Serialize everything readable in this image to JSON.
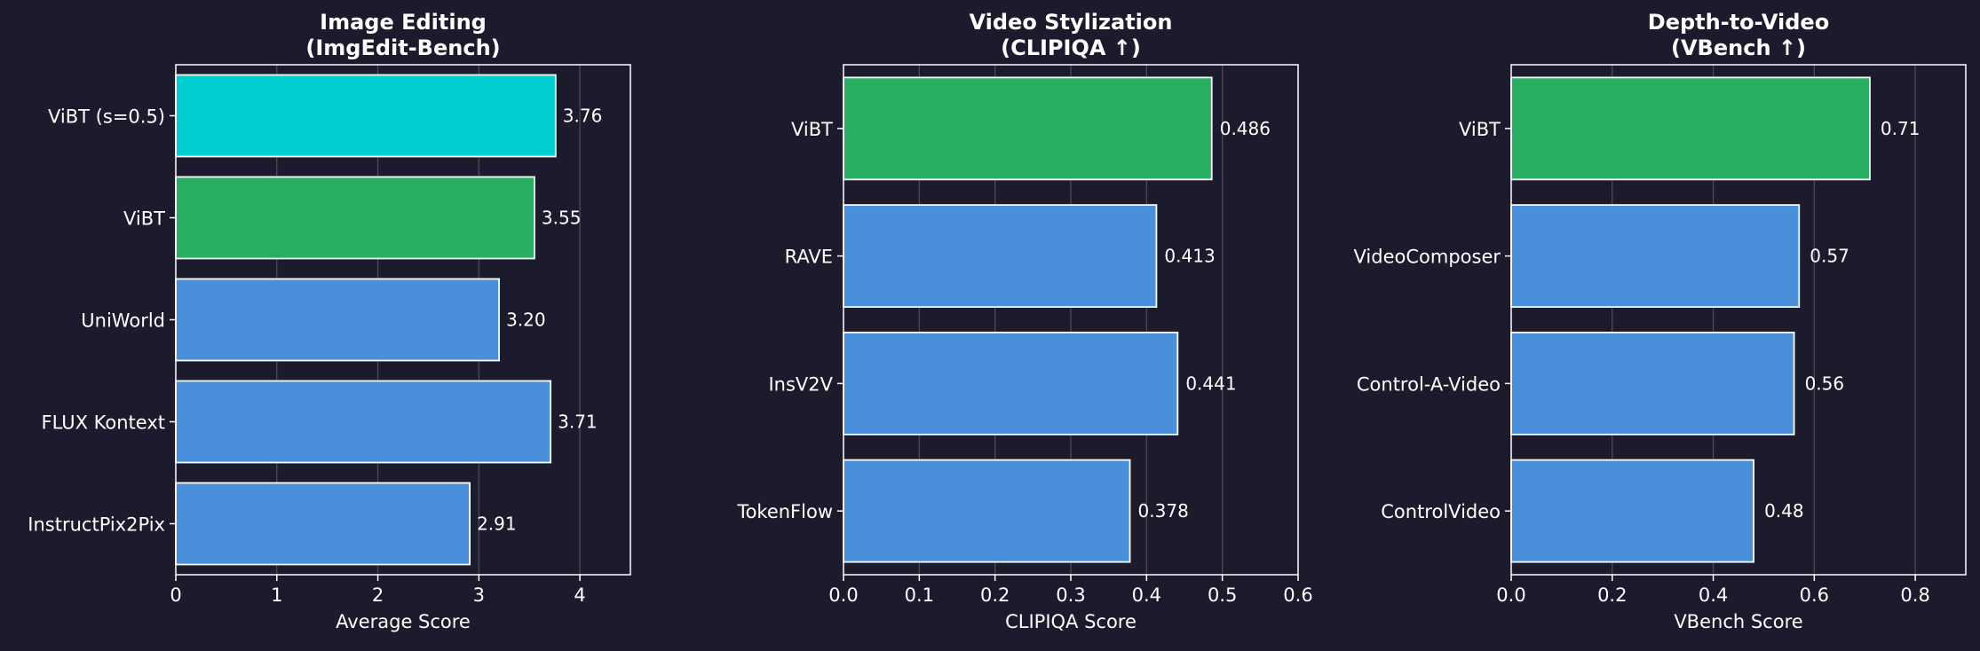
{
  "colors": {
    "background": "#1b1b2d",
    "bar_default": "#4a8fd9",
    "bar_highlight_green": "#27ae60",
    "bar_highlight_cyan": "#00ced1",
    "bar_edge": "#ffffff",
    "grid": "#ffffff",
    "text": "#ffffff"
  },
  "chart_data": [
    {
      "type": "bar",
      "orientation": "horizontal",
      "title_lines": [
        "Image Editing",
        "(ImgEdit-Bench)"
      ],
      "xlabel": "Average Score",
      "ylabel": "",
      "categories": [
        "ViBT (s=0.5)",
        "ViBT",
        "UniWorld",
        "FLUX Kontext",
        "InstructPix2Pix"
      ],
      "values": [
        3.76,
        3.55,
        3.2,
        3.71,
        2.91
      ],
      "value_labels": [
        "3.76",
        "3.55",
        "3.20",
        "3.71",
        "2.91"
      ],
      "bar_colors": [
        "#00ced1",
        "#27ae60",
        "#4a8fd9",
        "#4a8fd9",
        "#4a8fd9"
      ],
      "xlim": [
        0,
        4.5
      ],
      "xticks": [
        0,
        1,
        2,
        3,
        4
      ],
      "xtick_labels": [
        "0",
        "1",
        "2",
        "3",
        "4"
      ],
      "grid": "vertical"
    },
    {
      "type": "bar",
      "orientation": "horizontal",
      "title_lines": [
        "Video Stylization",
        "(CLIPIQA ↑)"
      ],
      "xlabel": "CLIPIQA Score",
      "ylabel": "",
      "categories": [
        "ViBT",
        "RAVE",
        "InsV2V",
        "TokenFlow"
      ],
      "values": [
        0.486,
        0.413,
        0.441,
        0.378
      ],
      "value_labels": [
        "0.486",
        "0.413",
        "0.441",
        "0.378"
      ],
      "bar_colors": [
        "#27ae60",
        "#4a8fd9",
        "#4a8fd9",
        "#4a8fd9"
      ],
      "xlim": [
        0,
        0.6
      ],
      "xticks": [
        0,
        0.1,
        0.2,
        0.3,
        0.4,
        0.5,
        0.6
      ],
      "xtick_labels": [
        "0.0",
        "0.1",
        "0.2",
        "0.3",
        "0.4",
        "0.5",
        "0.6"
      ],
      "grid": "vertical"
    },
    {
      "type": "bar",
      "orientation": "horizontal",
      "title_lines": [
        "Depth-to-Video",
        "(VBench ↑)"
      ],
      "xlabel": "VBench Score",
      "ylabel": "",
      "categories": [
        "ViBT",
        "VideoComposer",
        "Control-A-Video",
        "ControlVideo"
      ],
      "values": [
        0.71,
        0.57,
        0.56,
        0.48
      ],
      "value_labels": [
        "0.71",
        "0.57",
        "0.56",
        "0.48"
      ],
      "bar_colors": [
        "#27ae60",
        "#4a8fd9",
        "#4a8fd9",
        "#4a8fd9"
      ],
      "xlim": [
        0,
        0.9
      ],
      "xticks": [
        0,
        0.2,
        0.4,
        0.6,
        0.8
      ],
      "xtick_labels": [
        "0.0",
        "0.2",
        "0.4",
        "0.6",
        "0.8"
      ],
      "grid": "vertical"
    }
  ]
}
